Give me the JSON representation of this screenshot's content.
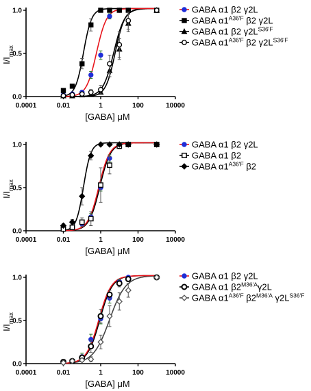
{
  "chart_data": [
    {
      "type": "scatter",
      "xscale": "log",
      "xlim": [
        0.0001,
        10000
      ],
      "ylim": [
        0.0,
        1.0
      ],
      "x_ticks": [
        "0.0001",
        "0.01",
        "1",
        "100",
        "10000"
      ],
      "y_ticks": [
        "0.0",
        "0.5",
        "1.0"
      ],
      "ylabel": "I/I",
      "ylabel_sub": "max",
      "xlabel": "[GABA] μM",
      "legend_position": "right",
      "series": [
        {
          "name": "GABA α1 β2 γ2L",
          "name_parts": [],
          "marker": "circle-filled",
          "color": "#1f2ed8",
          "line_color": "#e8141b",
          "ec50": 0.6,
          "hill": 1.6,
          "x": [
            0.01,
            0.03,
            0.1,
            0.3,
            1,
            3,
            10,
            30,
            1000
          ],
          "y": [
            0.02,
            0.03,
            0.05,
            0.25,
            0.48,
            0.93,
            1.0,
            1.0,
            1.0
          ],
          "err": [
            0.01,
            0.01,
            0.02,
            0.04,
            0.05,
            0.03,
            0.0,
            0.0,
            0.0
          ]
        },
        {
          "name": "",
          "name_parts": [
            [
              "GABA α1",
              ""
            ],
            [
              "A36'F",
              "sup"
            ],
            [
              " β2 γ2L",
              ""
            ]
          ],
          "marker": "square-filled",
          "color": "#000000",
          "line_color": "#000000",
          "ec50": 0.12,
          "hill": 2.0,
          "x": [
            0.01,
            0.03,
            0.1,
            0.3,
            1,
            3,
            10,
            30,
            1000
          ],
          "y": [
            0.07,
            0.12,
            0.38,
            0.83,
            1.0,
            1.0,
            1.0,
            1.0,
            1.0
          ],
          "err": [
            0.02,
            0.02,
            0.06,
            0.07,
            0.01,
            0.0,
            0.0,
            0.0,
            0.0
          ]
        },
        {
          "name": "",
          "name_parts": [
            [
              "GABA α1 β2 γ2L",
              ""
            ],
            [
              "S36'F",
              "sup"
            ]
          ],
          "marker": "triangle-filled",
          "color": "#000000",
          "line_color": "#000000",
          "ec50": 6.0,
          "hill": 1.7,
          "x": [
            0.01,
            0.03,
            0.1,
            0.3,
            1,
            3,
            10,
            30,
            1000
          ],
          "y": [
            0.01,
            0.01,
            0.02,
            0.03,
            0.05,
            0.3,
            0.55,
            0.85,
            1.0
          ],
          "err": [
            0.0,
            0.0,
            0.01,
            0.01,
            0.02,
            0.07,
            0.12,
            0.1,
            0.0
          ]
        },
        {
          "name": "",
          "name_parts": [
            [
              "GABA α1",
              ""
            ],
            [
              "A36'F",
              "sup"
            ],
            [
              " β2 γ2L",
              ""
            ],
            [
              "S36'F",
              "sup"
            ]
          ],
          "marker": "circle-open",
          "color": "#000000",
          "line_color": "#000000",
          "ec50": 5.0,
          "hill": 1.5,
          "x": [
            0.01,
            0.03,
            0.1,
            0.3,
            1,
            3,
            10,
            30,
            1000
          ],
          "y": [
            0.01,
            0.02,
            0.03,
            0.05,
            0.08,
            0.38,
            0.6,
            0.88,
            1.0
          ],
          "err": [
            0.0,
            0.01,
            0.02,
            0.03,
            0.05,
            0.1,
            0.15,
            0.1,
            0.0
          ]
        }
      ]
    },
    {
      "type": "scatter",
      "xscale": "log",
      "xlim": [
        0.0001,
        10000
      ],
      "ylim": [
        0.0,
        1.0
      ],
      "x_ticks": [
        "0.0001",
        "0.01",
        "1",
        "100",
        "10000"
      ],
      "y_ticks": [
        "0.0",
        "0.5",
        "1.0"
      ],
      "ylabel": "I/I",
      "ylabel_sub": "max",
      "xlabel": "[GABA] μM",
      "legend_position": "right",
      "series": [
        {
          "name": "GABA α1 β2 γ2L",
          "name_parts": [],
          "marker": "circle-filled",
          "color": "#1f2ed8",
          "line_color": "#e8141b",
          "ec50": 0.8,
          "hill": 1.5,
          "x": [
            0.01,
            0.03,
            0.1,
            0.3,
            1,
            3,
            10,
            30,
            1000
          ],
          "y": [
            0.02,
            0.04,
            0.08,
            0.16,
            0.5,
            0.84,
            0.98,
            1.0,
            1.0
          ],
          "err": [
            0.01,
            0.01,
            0.02,
            0.04,
            0.04,
            0.04,
            0.02,
            0.0,
            0.0
          ]
        },
        {
          "name": "GABA α1 β2",
          "name_parts": [],
          "marker": "square-open",
          "color": "#000000",
          "line_color": "#000000",
          "ec50": 0.9,
          "hill": 1.5,
          "x": [
            0.01,
            0.03,
            0.1,
            0.3,
            1,
            3,
            10,
            30,
            1000
          ],
          "y": [
            0.02,
            0.04,
            0.1,
            0.14,
            0.53,
            0.76,
            0.98,
            1.0,
            1.0
          ],
          "err": [
            0.01,
            0.02,
            0.05,
            0.08,
            0.2,
            0.1,
            0.03,
            0.0,
            0.0
          ]
        },
        {
          "name": "",
          "name_parts": [
            [
              "GABA α1",
              ""
            ],
            [
              "A36'F",
              "sup"
            ],
            [
              " β2",
              ""
            ]
          ],
          "marker": "diamond-filled",
          "color": "#000000",
          "line_color": "#000000",
          "ec50": 0.12,
          "hill": 2.2,
          "x": [
            0.01,
            0.03,
            0.1,
            0.3,
            1,
            3,
            10,
            30,
            1000
          ],
          "y": [
            0.06,
            0.1,
            0.4,
            0.87,
            1.0,
            1.0,
            1.0,
            1.0,
            1.0
          ],
          "err": [
            0.02,
            0.03,
            0.1,
            0.05,
            0.01,
            0.0,
            0.0,
            0.0,
            0.0
          ]
        }
      ]
    },
    {
      "type": "scatter",
      "xscale": "log",
      "xlim": [
        0.0001,
        10000
      ],
      "ylim": [
        0.0,
        1.0
      ],
      "x_ticks": [
        "0.0001",
        "0.01",
        "1",
        "100",
        "10000"
      ],
      "y_ticks": [
        "0.0",
        "0.5",
        "1.0"
      ],
      "ylabel": "I/I",
      "ylabel_sub": "max",
      "xlabel": "[GABA] μM",
      "legend_position": "right",
      "series": [
        {
          "name": "GABA α1 β2 γ2L",
          "name_parts": [],
          "marker": "circle-filled",
          "color": "#1f2ed8",
          "line_color": "#e8141b",
          "ec50": 0.8,
          "hill": 1.3,
          "x": [
            0.01,
            0.03,
            0.1,
            0.3,
            1,
            3,
            10,
            30,
            1000
          ],
          "y": [
            0.02,
            0.03,
            0.08,
            0.28,
            0.52,
            0.76,
            0.95,
            1.0,
            1.0
          ],
          "err": [
            0.01,
            0.01,
            0.04,
            0.06,
            0.06,
            0.06,
            0.03,
            0.0,
            0.0
          ]
        },
        {
          "name": "",
          "name_parts": [
            [
              "GABA α1 β2",
              ""
            ],
            [
              "M36'A",
              "sup"
            ],
            [
              "γ2L",
              ""
            ]
          ],
          "marker": "circle-hollow-dark",
          "color": "#000000",
          "line_color": "#000000",
          "ec50": 0.9,
          "hill": 1.3,
          "x": [
            0.01,
            0.03,
            0.1,
            0.3,
            1,
            3,
            10,
            30,
            1000
          ],
          "y": [
            0.02,
            0.03,
            0.07,
            0.2,
            0.55,
            0.8,
            0.93,
            0.98,
            1.0
          ],
          "err": [
            0.01,
            0.01,
            0.03,
            0.07,
            0.08,
            0.05,
            0.04,
            0.01,
            0.0
          ]
        },
        {
          "name": "",
          "name_parts": [
            [
              "GABA α1",
              ""
            ],
            [
              "A36'F",
              "sup"
            ],
            [
              " β2",
              ""
            ],
            [
              "M36'A",
              "sup"
            ],
            [
              " γ2L",
              ""
            ],
            [
              "S36'F",
              "sup"
            ]
          ],
          "marker": "diamond-open",
          "color": "#555555",
          "line_color": "#444444",
          "ec50": 3.0,
          "hill": 1.0,
          "x": [
            0.01,
            0.03,
            0.1,
            0.3,
            1,
            3,
            10,
            30,
            1000
          ],
          "y": [
            0.01,
            0.03,
            0.04,
            0.05,
            0.25,
            0.55,
            0.72,
            0.85,
            1.0
          ],
          "err": [
            0.01,
            0.01,
            0.02,
            0.03,
            0.08,
            0.12,
            0.1,
            0.08,
            0.0
          ]
        }
      ]
    }
  ]
}
